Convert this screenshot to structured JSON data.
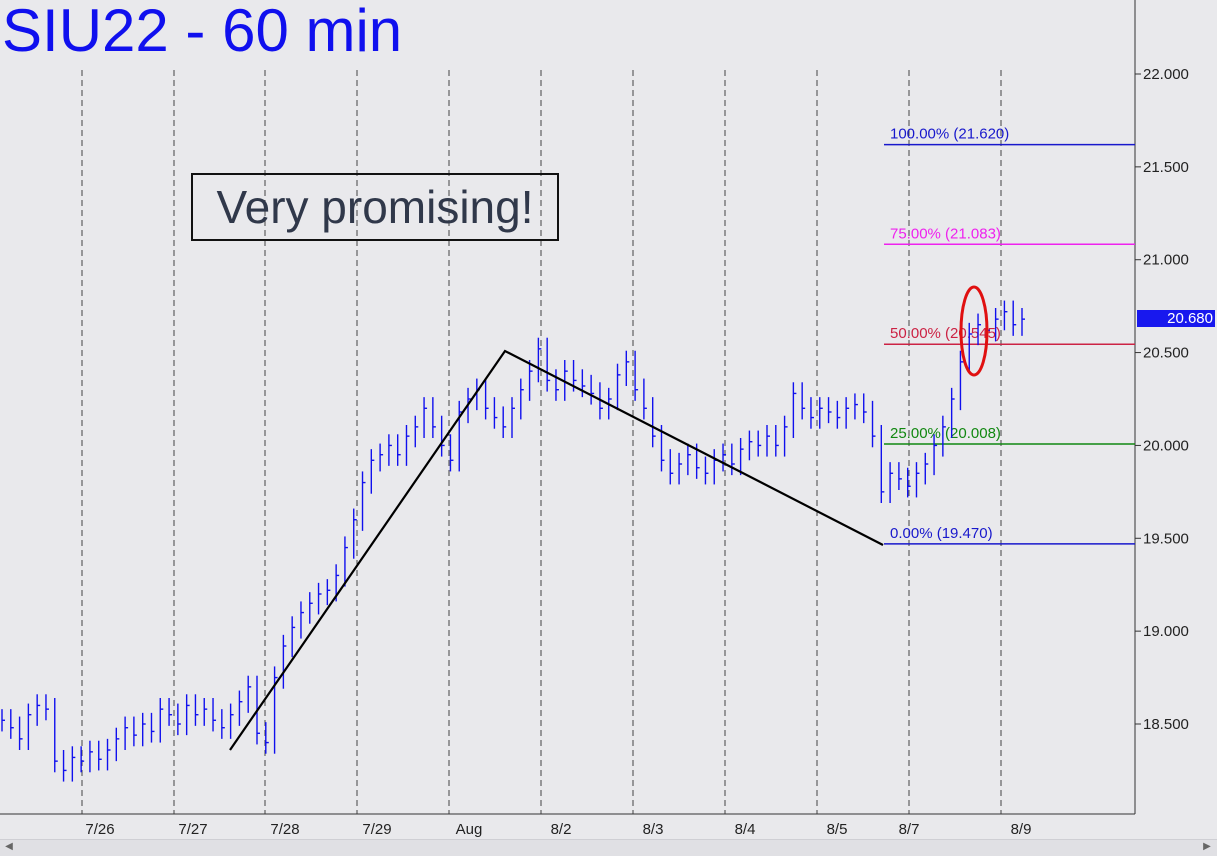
{
  "chart_data": {
    "type": "line",
    "title": "SIU22 - 60 min",
    "annotation": "Very promising!",
    "ylim": [
      18.0,
      22.35
    ],
    "y_ticks": [
      "22.000",
      "21.500",
      "21.000",
      "20.500",
      "20.000",
      "19.500",
      "19.000",
      "18.500"
    ],
    "y_tick_values": [
      22.0,
      21.5,
      21.0,
      20.5,
      20.0,
      19.5,
      19.0,
      18.5
    ],
    "x_ticks": [
      "7/26",
      "7/27",
      "7/28",
      "7/29",
      "Aug",
      "8/2",
      "8/3",
      "8/4",
      "8/5",
      "8/7",
      "8/9"
    ],
    "current_price_label": "20.680",
    "current_price": 20.68,
    "fib_levels": [
      {
        "label": "100.00% (21.620)",
        "value": 21.62,
        "color": "#1818cc"
      },
      {
        "label": "75.00% (21.083)",
        "value": 21.083,
        "color": "#ee22ee"
      },
      {
        "label": "50.00% (20.545)",
        "value": 20.545,
        "color": "#cc2244"
      },
      {
        "label": "25.00% (20.008)",
        "value": 20.008,
        "color": "#118811"
      },
      {
        "label": "0.00% (19.470)",
        "value": 19.47,
        "color": "#1818cc"
      }
    ],
    "series": [
      {
        "values": [
          18.52,
          18.48,
          18.42,
          18.55,
          18.6,
          18.58,
          18.3,
          18.25,
          18.32,
          18.3,
          18.35,
          18.31,
          18.36,
          18.42,
          18.48,
          18.44,
          18.5,
          18.46,
          18.58,
          18.55,
          18.5,
          18.6,
          18.55,
          18.58,
          18.52,
          18.48,
          18.55,
          18.62,
          18.7,
          18.45,
          18.4,
          18.75,
          18.92,
          19.02,
          19.1,
          19.15,
          19.2,
          19.22,
          19.3,
          19.45,
          19.6,
          19.8,
          19.92,
          19.95,
          20.0,
          19.95,
          20.05,
          20.1,
          20.2,
          20.1,
          20.0,
          19.92,
          20.18,
          20.25,
          20.3,
          20.2,
          20.15,
          20.1,
          20.2,
          20.3,
          20.4,
          20.52,
          20.35,
          20.3,
          20.4,
          20.35,
          20.32,
          20.28,
          20.2,
          20.25,
          20.38,
          20.45,
          20.3,
          20.2,
          20.05,
          19.92,
          19.85,
          19.9,
          19.95,
          19.88,
          19.85,
          19.92,
          19.95,
          19.9,
          19.98,
          20.02,
          20.0,
          20.05,
          20.0,
          20.1,
          20.28,
          20.2,
          20.15,
          20.2,
          20.18,
          20.15,
          20.2,
          20.22,
          20.18,
          20.05,
          19.75,
          19.85,
          19.82,
          19.78,
          19.85,
          19.9,
          20.0,
          20.1,
          20.25,
          20.45,
          20.6,
          20.65,
          20.62,
          20.68,
          20.72,
          20.65,
          20.68
        ]
      }
    ]
  }
}
